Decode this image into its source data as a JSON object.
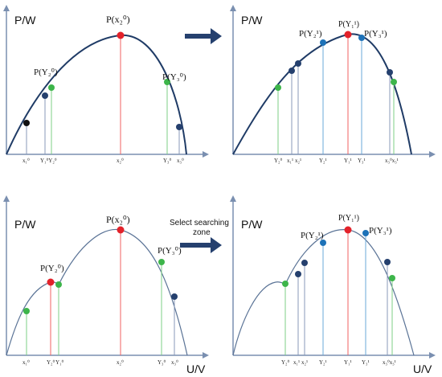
{
  "colors": {
    "axis": "#7a8fb0",
    "curve_dark": "#1f3b66",
    "curve_light": "#5a7396",
    "red": "#e3222a",
    "green": "#3db54a",
    "blue": "#1d72b8",
    "navy": "#25406e",
    "black": "#111111",
    "line_red": "#f06060",
    "line_green": "#7ccf84",
    "line_blue": "#6aa9d8",
    "line_navy": "#8a9ab8"
  },
  "axes": {
    "y_label": "P/W",
    "x_label": "U/V"
  },
  "arrow_caption": {
    "line1": "Select searching",
    "line2": "zone"
  },
  "panels": {
    "tl": {
      "labels": {
        "peak": "P(x₂⁰)",
        "left": "P(Y₂⁰)",
        "right": "P(Y₃⁰)"
      },
      "ticks": [
        "x₁⁰",
        "Y₁⁰Y₂⁰",
        "x₂⁰",
        "Y₃⁰",
        "x₃⁰"
      ]
    },
    "tr": {
      "labels": {
        "peak": "P(Y₁¹)",
        "left": "P(Y₂¹)",
        "right": "P(Y₃¹)"
      },
      "ticks": [
        "Y₂⁰",
        "x₁¹",
        "x₂¹",
        "Y₂¹",
        "Y₁¹",
        "Y₃¹",
        "x₃⁰x₃¹"
      ]
    },
    "bl": {
      "labels": {
        "peak": "P(x₂⁰)",
        "left": "P(Y₂⁰)",
        "right": "P(Y₃⁰)"
      },
      "ticks": [
        "x₁⁰",
        "Y₂⁰",
        "Y₁⁰",
        "x₂⁰",
        "Y₃⁰",
        "x₃⁰"
      ]
    },
    "br": {
      "labels": {
        "peak": "P(Y₁¹)",
        "left": "P(Y₂¹)",
        "right": "P(Y₃¹)"
      },
      "ticks": [
        "Y₂⁰",
        "x₁¹",
        "x₂¹",
        "Y₂¹",
        "Y₁¹",
        "Y₃¹",
        "x₃⁰x₃¹"
      ]
    }
  }
}
